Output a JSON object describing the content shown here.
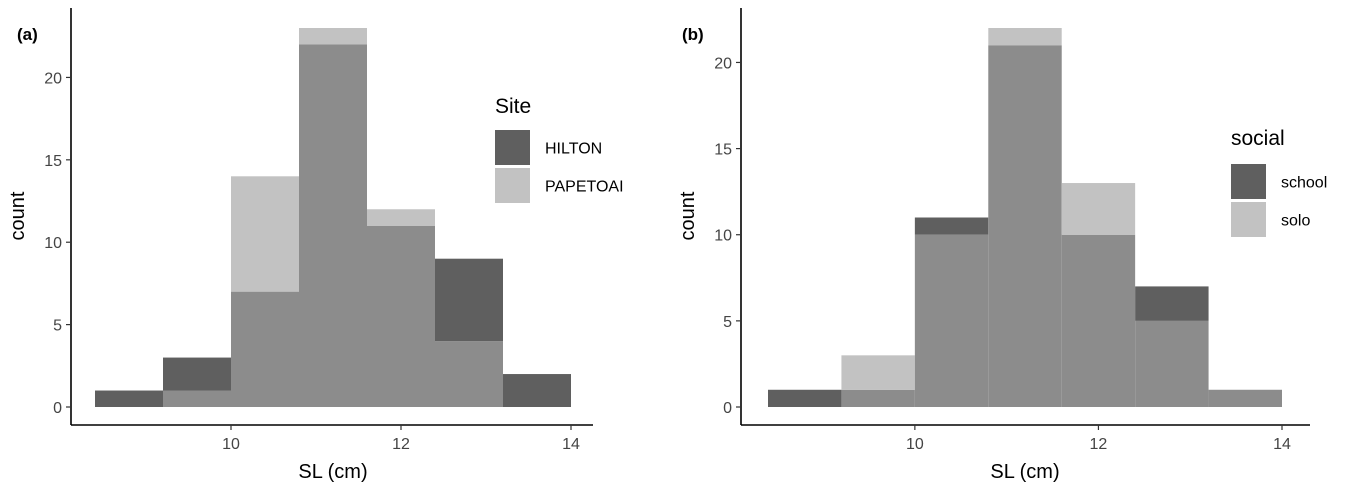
{
  "chart_data": [
    {
      "type": "bar",
      "panel_label": "(a)",
      "xlabel": "SL (cm)",
      "ylabel": "count",
      "xlim": [
        8.4,
        14.0
      ],
      "ylim": [
        0,
        23
      ],
      "xticks": [
        10,
        12,
        14
      ],
      "yticks": [
        0,
        5,
        10,
        15,
        20
      ],
      "grid": false,
      "legend_position": "right",
      "legend_title": "Site",
      "bin_edges": [
        8.4,
        9.2,
        10.0,
        10.8,
        11.6,
        12.4,
        13.2,
        14.0
      ],
      "series": [
        {
          "name": "HILTON",
          "color": "#5f5f5f",
          "values": [
            1,
            3,
            7,
            22,
            11,
            9,
            2
          ]
        },
        {
          "name": "PAPETOAI",
          "color": "#c2c2c2",
          "values": [
            0,
            1,
            14,
            23,
            12,
            4,
            0
          ]
        }
      ],
      "overlap_color": "#8c8c8c"
    },
    {
      "type": "bar",
      "panel_label": "(b)",
      "xlabel": "SL (cm)",
      "ylabel": "count",
      "xlim": [
        8.4,
        14.0
      ],
      "ylim": [
        0,
        22
      ],
      "xticks": [
        10,
        12,
        14
      ],
      "yticks": [
        0,
        5,
        10,
        15,
        20
      ],
      "grid": false,
      "legend_position": "right",
      "legend_title": "social",
      "bin_edges": [
        8.4,
        9.2,
        10.0,
        10.8,
        11.6,
        12.4,
        13.2,
        14.0
      ],
      "series": [
        {
          "name": "school",
          "color": "#5f5f5f",
          "values": [
            1,
            1,
            11,
            21,
            10,
            7,
            1
          ]
        },
        {
          "name": "solo",
          "color": "#c2c2c2",
          "values": [
            0,
            3,
            10,
            22,
            13,
            5,
            1
          ]
        }
      ],
      "overlap_color": "#8c8c8c"
    }
  ]
}
